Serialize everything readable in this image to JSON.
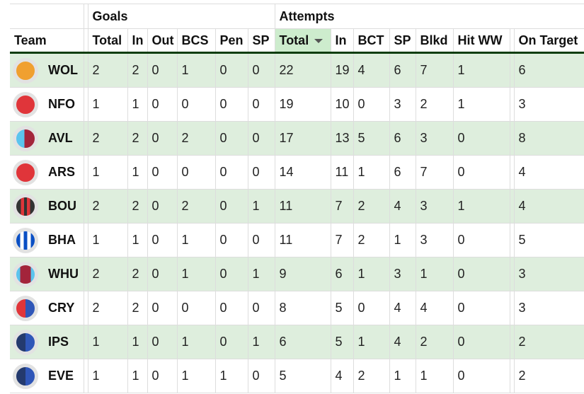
{
  "groups": {
    "goals": "Goals",
    "attempts": "Attempts"
  },
  "headers": [
    "Team",
    "Total",
    "In",
    "Out",
    "BCS",
    "Pen",
    "SP",
    "Total",
    "In",
    "BCT",
    "SP",
    "Blkd",
    "Hit WW",
    "On Target"
  ],
  "sorted_column": "Attempts Total",
  "sort_direction": "descending",
  "rows": [
    {
      "team": "WOL",
      "badge": "radial-gradient(circle,#f0a030 100%,#f0a030 100%)",
      "cells": [
        "2",
        "2",
        "0",
        "1",
        "0",
        "0",
        "22",
        "19",
        "4",
        "6",
        "7",
        "1",
        "6"
      ]
    },
    {
      "team": "NFO",
      "badge": "linear-gradient(90deg,#e0353a 0%,#e0353a 100%)",
      "cells": [
        "1",
        "1",
        "0",
        "0",
        "0",
        "0",
        "19",
        "10",
        "0",
        "3",
        "2",
        "1",
        "3"
      ]
    },
    {
      "team": "AVL",
      "badge": "linear-gradient(90deg,#5bc4ee 0%,#5bc4ee 45%,#a3243b 45%,#a3243b 100%)",
      "cells": [
        "2",
        "2",
        "0",
        "2",
        "0",
        "0",
        "17",
        "13",
        "5",
        "6",
        "3",
        "0",
        "8"
      ]
    },
    {
      "team": "ARS",
      "badge": "linear-gradient(90deg,#e0353a 0%,#e0353a 100%)",
      "cells": [
        "1",
        "1",
        "0",
        "0",
        "0",
        "0",
        "14",
        "11",
        "1",
        "6",
        "7",
        "0",
        "4"
      ]
    },
    {
      "team": "BOU",
      "badge": "linear-gradient(90deg,#333 0%,#333 25%,#e0353a 25%,#e0353a 42%,#333 42%,#333 58%,#e0353a 58%,#e0353a 75%,#333 75%)",
      "cells": [
        "2",
        "2",
        "0",
        "2",
        "0",
        "1",
        "11",
        "7",
        "2",
        "4",
        "3",
        "1",
        "4"
      ]
    },
    {
      "team": "BHA",
      "badge": "linear-gradient(90deg,#0a4fc4 0%,#0a4fc4 22%,#fff 22%,#fff 40%,#0a4fc4 40%,#0a4fc4 60%,#fff 60%,#fff 78%,#0a4fc4 78%)",
      "cells": [
        "1",
        "1",
        "0",
        "1",
        "0",
        "0",
        "11",
        "7",
        "2",
        "1",
        "3",
        "0",
        "5"
      ]
    },
    {
      "team": "WHU",
      "badge": "linear-gradient(90deg,#5bc4ee 0%,#5bc4ee 22%,#a3243b 22%,#a3243b 78%,#5bc4ee 78%)",
      "cells": [
        "2",
        "2",
        "0",
        "1",
        "0",
        "1",
        "9",
        "6",
        "1",
        "3",
        "1",
        "0",
        "3"
      ]
    },
    {
      "team": "CRY",
      "badge": "linear-gradient(90deg,#e0353a 0%,#e0353a 50%,#2f56b8 50%)",
      "cells": [
        "2",
        "2",
        "0",
        "0",
        "0",
        "0",
        "8",
        "5",
        "0",
        "4",
        "4",
        "0",
        "3"
      ]
    },
    {
      "team": "IPS",
      "badge": "linear-gradient(90deg,#243a6e 0%,#243a6e 50%,#2f56b8 50%)",
      "cells": [
        "1",
        "1",
        "0",
        "1",
        "0",
        "1",
        "6",
        "5",
        "1",
        "4",
        "2",
        "0",
        "2"
      ]
    },
    {
      "team": "EVE",
      "badge": "linear-gradient(90deg,#243a6e 0%,#243a6e 50%,#2f56b8 50%)",
      "cells": [
        "1",
        "1",
        "0",
        "1",
        "1",
        "0",
        "5",
        "4",
        "2",
        "1",
        "1",
        "0",
        "2"
      ]
    }
  ]
}
